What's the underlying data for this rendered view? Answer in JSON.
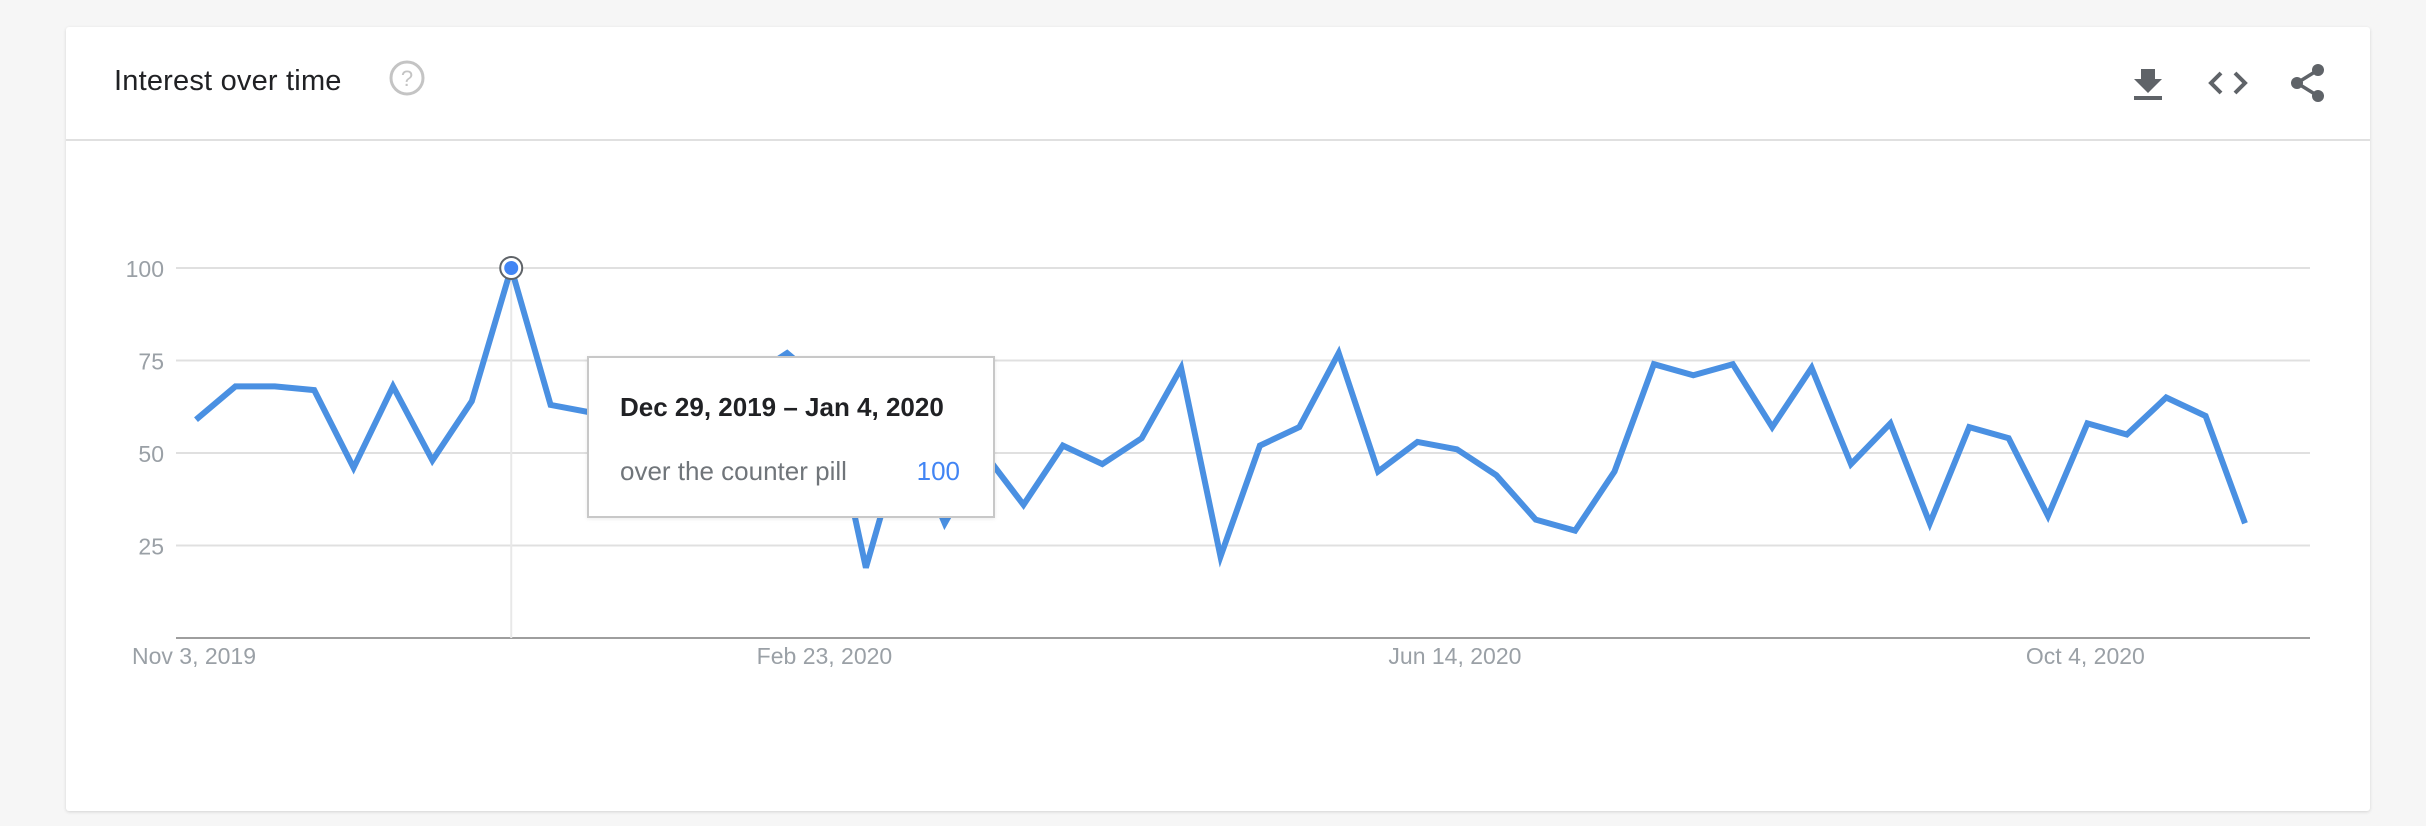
{
  "header": {
    "title": "Interest over time",
    "help_icon": "help-circle-icon",
    "actions": [
      {
        "name": "download-button",
        "icon": "download-icon"
      },
      {
        "name": "embed-button",
        "icon": "code-icon"
      },
      {
        "name": "share-button",
        "icon": "share-icon"
      }
    ]
  },
  "tooltip": {
    "date": "Dec 29, 2019 – Jan 4, 2020",
    "term": "over the counter pill",
    "value": "100"
  },
  "colors": {
    "line": "#4a90e2",
    "accent": "#4285f4",
    "grid": "#e0e0e0",
    "axis_text": "#9aa0a6"
  },
  "chart_data": {
    "type": "line",
    "title": "Interest over time",
    "xlabel": "",
    "ylabel": "",
    "ylim": [
      0,
      100
    ],
    "yticks": [
      25,
      50,
      75,
      100
    ],
    "grid": true,
    "x_tick_labels": [
      "Nov 3, 2019",
      "Feb 23, 2020",
      "Jun 14, 2020",
      "Oct 4, 2020"
    ],
    "x_tick_indices": [
      0,
      16,
      32,
      48
    ],
    "highlight_index": 8,
    "series": [
      {
        "name": "over the counter pill",
        "values": [
          59,
          68,
          68,
          67,
          46,
          68,
          48,
          64,
          100,
          63,
          61,
          67,
          53,
          74,
          70,
          77,
          68,
          19,
          56,
          31,
          50,
          36,
          52,
          47,
          54,
          73,
          22,
          52,
          57,
          77,
          45,
          53,
          51,
          44,
          32,
          29,
          45,
          74,
          71,
          74,
          57,
          73,
          47,
          58,
          31,
          57,
          54,
          33,
          58,
          55,
          65,
          60,
          31
        ]
      }
    ]
  }
}
